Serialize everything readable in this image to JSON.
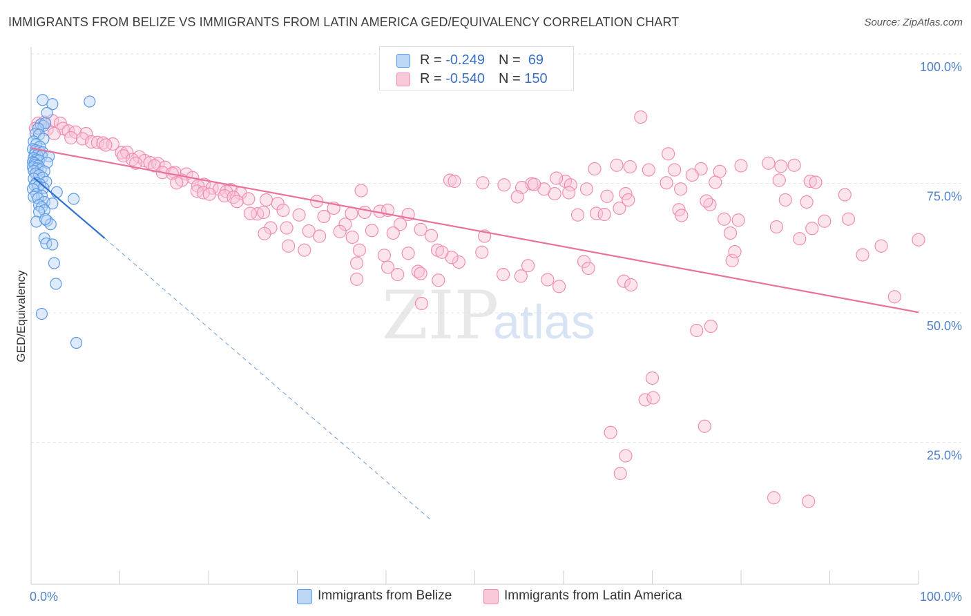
{
  "title": "IMMIGRANTS FROM BELIZE VS IMMIGRANTS FROM LATIN AMERICA GED/EQUIVALENCY CORRELATION CHART",
  "source": "Source: ZipAtlas.com",
  "watermark": {
    "zip": "ZIP",
    "atlas": "atlas"
  },
  "legend": {
    "rows": [
      {
        "r_label": "R = ",
        "r_value": "-0.249",
        "n_label": "N = ",
        "n_value": " 69",
        "color": "#5b9be8"
      },
      {
        "r_label": "R = ",
        "r_value": "-0.540",
        "n_label": "N = ",
        "n_value": "150",
        "color": "#f08cb0"
      }
    ]
  },
  "chart_data": {
    "type": "scatter",
    "title": "IMMIGRANTS FROM BELIZE VS IMMIGRANTS FROM LATIN AMERICA GED/EQUIVALENCY CORRELATION CHART",
    "xlabel": "",
    "ylabel": "GED/Equivalency",
    "xlim": [
      0,
      100
    ],
    "ylim": [
      0,
      100
    ],
    "x_tick_labels": [
      "0.0%",
      "100.0%"
    ],
    "y_tick_labels": [
      {
        "value": 100,
        "label": "100.0%"
      },
      {
        "value": 75,
        "label": "75.0%"
      },
      {
        "value": 50,
        "label": "50.0%"
      },
      {
        "value": 25,
        "label": "25.0%"
      }
    ],
    "grid": true,
    "legend_position": "bottom",
    "series": [
      {
        "name": "Immigrants from Belize",
        "color": "#5b9be8",
        "trend": {
          "x": [
            0.3,
            8.3
          ],
          "y": [
            78.5,
            66.8
          ],
          "dashed_to": [
            45,
            12.5
          ]
        },
        "points": [
          [
            1.3,
            93.5
          ],
          [
            2.4,
            92.7
          ],
          [
            6.6,
            93.2
          ],
          [
            1.8,
            91
          ],
          [
            1.1,
            88.8
          ],
          [
            1.4,
            88.5
          ],
          [
            1.6,
            89
          ],
          [
            0.8,
            88
          ],
          [
            0.5,
            87
          ],
          [
            0.9,
            86.8
          ],
          [
            1.4,
            86
          ],
          [
            0.3,
            85.5
          ],
          [
            0.6,
            85
          ],
          [
            1.0,
            84.5
          ],
          [
            0.2,
            84
          ],
          [
            0.5,
            83.8
          ],
          [
            0.9,
            83.6
          ],
          [
            1.3,
            83.4
          ],
          [
            0.4,
            83
          ],
          [
            0.7,
            82.8
          ],
          [
            1.2,
            82.7
          ],
          [
            2.0,
            82.6
          ],
          [
            0.3,
            82.3
          ],
          [
            0.6,
            82
          ],
          [
            0.9,
            81.8
          ],
          [
            0.2,
            81.5
          ],
          [
            0.4,
            81.3
          ],
          [
            1.8,
            81.4
          ],
          [
            0.5,
            81
          ],
          [
            0.8,
            80.8
          ],
          [
            0.2,
            80.5
          ],
          [
            0.7,
            80.3
          ],
          [
            1.1,
            80.1
          ],
          [
            0.3,
            79.8
          ],
          [
            1.5,
            79.7
          ],
          [
            0.5,
            79.3
          ],
          [
            0.9,
            79
          ],
          [
            1.3,
            78.5
          ],
          [
            0.3,
            78.3
          ],
          [
            1.7,
            77.7
          ],
          [
            0.6,
            77.5
          ],
          [
            1.0,
            77.2
          ],
          [
            0.4,
            77
          ],
          [
            0.8,
            76.8
          ],
          [
            1.4,
            76.5
          ],
          [
            0.2,
            76.3
          ],
          [
            2.9,
            75.7
          ],
          [
            0.6,
            75.3
          ],
          [
            1.2,
            75
          ],
          [
            0.3,
            74.8
          ],
          [
            0.8,
            74.5
          ],
          [
            4.8,
            74.4
          ],
          [
            1.5,
            73.8
          ],
          [
            2.4,
            73.5
          ],
          [
            0.9,
            73.2
          ],
          [
            1.2,
            72.8
          ],
          [
            1.5,
            72.2
          ],
          [
            0.9,
            71.9
          ],
          [
            1.8,
            70.2
          ],
          [
            0.6,
            70
          ],
          [
            2.2,
            69.5
          ],
          [
            1.5,
            66.8
          ],
          [
            1.7,
            65.8
          ],
          [
            2.4,
            65.6
          ],
          [
            2.6,
            62
          ],
          [
            2.8,
            58
          ],
          [
            1.2,
            52.2
          ],
          [
            5.1,
            46.6
          ],
          [
            1.6,
            70.5
          ]
        ]
      },
      {
        "name": "Immigrants from Latin America",
        "color": "#f08cb0",
        "trend": {
          "x": [
            0,
            100
          ],
          "y": [
            84.2,
            52.5
          ]
        },
        "points": [
          [
            0.8,
            89
          ],
          [
            1.5,
            89.2
          ],
          [
            2.4,
            89.5
          ],
          [
            3.3,
            89
          ],
          [
            0.5,
            88
          ],
          [
            1.8,
            87.8
          ],
          [
            3.6,
            88
          ],
          [
            4.2,
            87.5
          ],
          [
            5.0,
            87.3
          ],
          [
            6.2,
            87
          ],
          [
            2.6,
            87
          ],
          [
            4.5,
            86.2
          ],
          [
            5.8,
            86
          ],
          [
            6.8,
            85.4
          ],
          [
            7.5,
            85.3
          ],
          [
            8.1,
            85.2
          ],
          [
            9.2,
            85
          ],
          [
            8.4,
            84.8
          ],
          [
            10.2,
            83.3
          ],
          [
            10.8,
            83.4
          ],
          [
            10.4,
            82.7
          ],
          [
            12.2,
            82.5
          ],
          [
            11.4,
            82
          ],
          [
            12.8,
            81.8
          ],
          [
            13.4,
            81.4
          ],
          [
            11.8,
            81.3
          ],
          [
            14.3,
            81.2
          ],
          [
            13.9,
            80.8
          ],
          [
            15.1,
            80.5
          ],
          [
            14.8,
            79.5
          ],
          [
            16.2,
            79.5
          ],
          [
            15.9,
            79.3
          ],
          [
            17.5,
            79.2
          ],
          [
            18.2,
            78.5
          ],
          [
            17.0,
            78
          ],
          [
            16.4,
            77.5
          ],
          [
            19.5,
            77.2
          ],
          [
            18.8,
            76.9
          ],
          [
            20.4,
            76.5
          ],
          [
            21.2,
            76.3
          ],
          [
            22.5,
            76.2
          ],
          [
            22.0,
            75.8
          ],
          [
            23.6,
            75.5
          ],
          [
            18.7,
            75.9
          ],
          [
            19.4,
            75.6
          ],
          [
            20.1,
            75.3
          ],
          [
            21.8,
            75
          ],
          [
            22.8,
            74.7
          ],
          [
            24.5,
            74.4
          ],
          [
            23.2,
            73.9
          ],
          [
            26.5,
            74.2
          ],
          [
            32.2,
            73.9
          ],
          [
            27.8,
            73.5
          ],
          [
            25.5,
            71.5
          ],
          [
            24.7,
            71.6
          ],
          [
            26.2,
            71.8
          ],
          [
            28.4,
            72.2
          ],
          [
            30.2,
            71.3
          ],
          [
            33.0,
            71
          ],
          [
            36.1,
            71.6
          ],
          [
            37.6,
            71.8
          ],
          [
            39.3,
            72
          ],
          [
            42.5,
            71.4
          ],
          [
            34.1,
            72.6
          ],
          [
            40.2,
            72.2
          ],
          [
            35.4,
            69.5
          ],
          [
            41.6,
            69.5
          ],
          [
            27.0,
            68.8
          ],
          [
            28.8,
            68.8
          ],
          [
            31.3,
            68.2
          ],
          [
            32.5,
            67.2
          ],
          [
            34.8,
            68.1
          ],
          [
            38.4,
            68.3
          ],
          [
            40.8,
            67.8
          ],
          [
            43.9,
            68.5
          ],
          [
            45.1,
            67.3
          ],
          [
            51.1,
            67.2
          ],
          [
            36.2,
            67
          ],
          [
            26.3,
            67.7
          ],
          [
            29.0,
            65.3
          ],
          [
            30.8,
            64.5
          ],
          [
            37.0,
            64.5
          ],
          [
            45.8,
            64.5
          ],
          [
            42.5,
            63.9
          ],
          [
            48.2,
            62.2
          ],
          [
            47.4,
            63.1
          ],
          [
            39.8,
            63.5
          ],
          [
            36.7,
            62
          ],
          [
            40.2,
            61.2
          ],
          [
            43.6,
            60.4
          ],
          [
            41.3,
            59.8
          ],
          [
            45.9,
            58.7
          ],
          [
            59.5,
            57.5
          ],
          [
            44.0,
            54.2
          ],
          [
            68.7,
            90.2
          ],
          [
            47.2,
            78
          ],
          [
            50.9,
            77.5
          ],
          [
            47.7,
            77.8
          ],
          [
            37.2,
            76
          ],
          [
            56.4,
            77.3
          ],
          [
            60.2,
            77.8
          ],
          [
            55.3,
            76.6
          ],
          [
            59.0,
            75.4
          ],
          [
            53.3,
            77.1
          ],
          [
            54.8,
            74.8
          ],
          [
            57.8,
            76.3
          ],
          [
            71.8,
            83.1
          ],
          [
            80.0,
            80.8
          ],
          [
            84.5,
            80.7
          ],
          [
            86.0,
            80.9
          ],
          [
            83.1,
            81.3
          ],
          [
            66.0,
            80.9
          ],
          [
            67.5,
            80.6
          ],
          [
            69.6,
            80
          ],
          [
            72.5,
            80
          ],
          [
            75.5,
            80.2
          ],
          [
            77.6,
            79.7
          ],
          [
            74.5,
            79
          ],
          [
            77.1,
            77.6
          ],
          [
            71.6,
            77.5
          ],
          [
            84.3,
            78
          ],
          [
            87.8,
            77.8
          ],
          [
            88.4,
            77.6
          ],
          [
            73.2,
            76.3
          ],
          [
            63.5,
            80.2
          ],
          [
            59.2,
            78.4
          ],
          [
            56.7,
            77.2
          ],
          [
            60.8,
            77.1
          ],
          [
            62.6,
            76.3
          ],
          [
            60.6,
            75.6
          ],
          [
            64.9,
            74.9
          ],
          [
            67.0,
            75.4
          ],
          [
            76.5,
            73.3
          ],
          [
            67.3,
            74.2
          ],
          [
            66.3,
            72.6
          ],
          [
            63.7,
            71.6
          ],
          [
            61.6,
            71.3
          ],
          [
            64.6,
            71.4
          ],
          [
            73.0,
            72.3
          ],
          [
            76.1,
            74
          ],
          [
            85.0,
            74.2
          ],
          [
            91.7,
            75.2
          ],
          [
            87.4,
            73.8
          ],
          [
            88.0,
            68.7
          ],
          [
            89.4,
            70.1
          ],
          [
            92.1,
            70.5
          ],
          [
            73.3,
            71.2
          ],
          [
            78.1,
            70.5
          ],
          [
            79.7,
            70.3
          ],
          [
            78.8,
            67.8
          ],
          [
            86.6,
            66.7
          ],
          [
            95.8,
            65.3
          ],
          [
            93.7,
            63.6
          ],
          [
            79.0,
            62.5
          ],
          [
            79.3,
            64.2
          ],
          [
            66.8,
            58.5
          ],
          [
            62.3,
            62.3
          ],
          [
            58.2,
            58.8
          ],
          [
            55.2,
            59.5
          ],
          [
            53.2,
            59.8
          ],
          [
            50.8,
            64.1
          ],
          [
            46.3,
            64.1
          ],
          [
            43.9,
            60
          ],
          [
            36.7,
            58.9
          ],
          [
            100,
            66.5
          ],
          [
            97.3,
            55.5
          ],
          [
            76.6,
            49.8
          ],
          [
            75.0,
            49
          ],
          [
            70.0,
            39.8
          ],
          [
            69.2,
            35.6
          ],
          [
            70.1,
            36
          ],
          [
            75.9,
            30.5
          ],
          [
            67.6,
            57.8
          ],
          [
            84.0,
            69
          ],
          [
            65.3,
            29.3
          ],
          [
            67.0,
            24.8
          ],
          [
            66.4,
            21.4
          ],
          [
            83.7,
            16.7
          ],
          [
            87.6,
            16.0
          ],
          [
            62.8,
            61
          ],
          [
            56.0,
            61.5
          ]
        ]
      }
    ]
  },
  "bottom_legend": [
    {
      "label": "Immigrants from Belize",
      "color": "#5b9be8"
    },
    {
      "label": "Immigrants from Latin America",
      "color": "#f08cb0"
    }
  ]
}
